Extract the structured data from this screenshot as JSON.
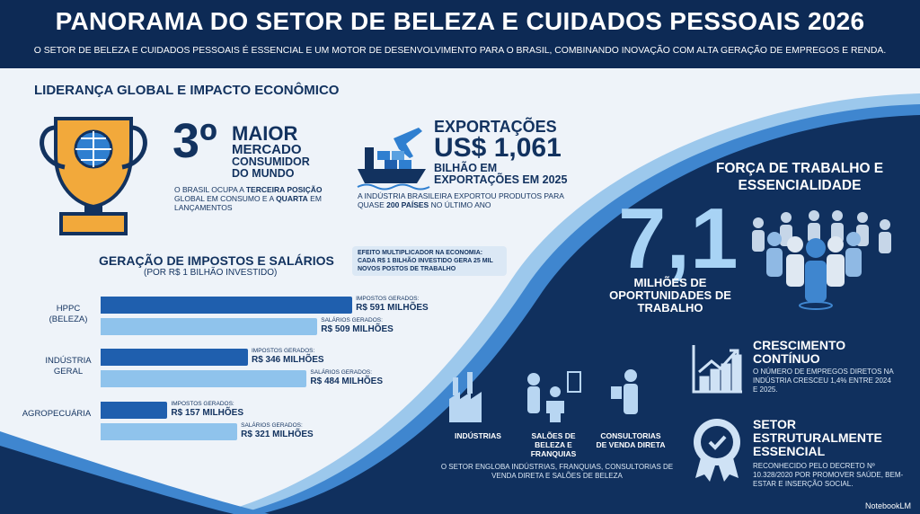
{
  "header": {
    "title": "PANORAMA DO SETOR DE BELEZA E CUIDADOS PESSOAIS 2026",
    "subtitle": "O SETOR DE BELEZA E CUIDADOS PESSOAIS É ESSENCIAL E UM MOTOR DE DESENVOLVIMENTO PARA O BRASIL, COMBINANDO INOVAÇÃO COM ALTA GERAÇÃO DE EMPREGOS E RENDA."
  },
  "leadership": {
    "heading": "LIDERANÇA GLOBAL E IMPACTO ECONÔMICO",
    "rank": {
      "big": "3º",
      "line1": "MAIOR",
      "line2": "MERCADO",
      "line3": "CONSUMIDOR",
      "line4": "DO MUNDO",
      "text": [
        "O BRASIL OCUPA A ",
        "TERCEIRA POSIÇÃO",
        " GLOBAL EM CONSUMO E A ",
        "QUARTA",
        " EM LANÇAMENTOS"
      ]
    },
    "exports": {
      "line1": "EXPORTAÇÕES",
      "big": "US$ 1,061",
      "line2": "BILHÃO EM",
      "line3": "EXPORTAÇÕES EM 2025",
      "text": [
        "A INDÚSTRIA BRASILEIRA EXPORTOU PRODUTOS PARA QUASE ",
        "200 PAÍSES",
        " NO ÚLTIMO ANO"
      ]
    }
  },
  "chart_data": {
    "type": "bar",
    "orientation": "horizontal",
    "title": "GERAÇÃO DE IMPOSTOS E SALÁRIOS",
    "subtitle": "(POR R$ 1 BILHÃO INVESTIDO)",
    "annotation": "EFEITO MULTIPLICADOR NA ECONOMIA: CADA R$ 1 BILHÃO INVESTIDO GERA 25 MIL NOVOS POSTOS DE TRABALHO",
    "categories": [
      "HPPC (BELEZA)",
      "INDÚSTRIA GERAL",
      "AGROPECUÁRIA"
    ],
    "series": [
      {
        "name": "IMPOSTOS GERADOS:",
        "color": "#1f5fae",
        "values": [
          591,
          346,
          157
        ],
        "value_labels": [
          "R$ 591 MILHÕES",
          "R$ 346 MILHÕES",
          "R$ 157 MILHÕES"
        ]
      },
      {
        "name": "SALÁRIOS GERADOS:",
        "color": "#8fc3ec",
        "values": [
          509,
          484,
          321
        ],
        "value_labels": [
          "R$ 509 MILHÕES",
          "R$ 484 MILHÕES",
          "R$ 321 MILHÕES"
        ]
      }
    ]
  },
  "segments": {
    "items": [
      "INDÚSTRIAS",
      "SALÕES DE BELEZA E FRANQUIAS",
      "CONSULTORIAS DE VENDA DIRETA"
    ],
    "note": "O SETOR ENGLOBA INDÚSTRIAS, FRANQUIAS, CONSULTORIAS DE VENDA DIRETA E SALÕES DE BELEZA"
  },
  "workforce": {
    "heading": "FORÇA DE TRABALHO E ESSENCIALIDADE",
    "big": "7,1",
    "caption": "MILHÕES DE OPORTUNIDADES DE TRABALHO"
  },
  "growth": {
    "title": "CRESCIMENTO CONTÍNUO",
    "text": "O NÚMERO DE EMPREGOS DIRETOS NA INDÚSTRIA CRESCEU 1,4% ENTRE 2024 E 2025."
  },
  "essential": {
    "title": "SETOR ESTRUTURALMENTE ESSENCIAL",
    "text": "RECONHECIDO PELO DECRETO Nº 10.328/2020 POR PROMOVER SAÚDE, BEM-ESTAR E INSERÇÃO SOCIAL."
  },
  "footer": {
    "brand": "NotebookLM"
  }
}
